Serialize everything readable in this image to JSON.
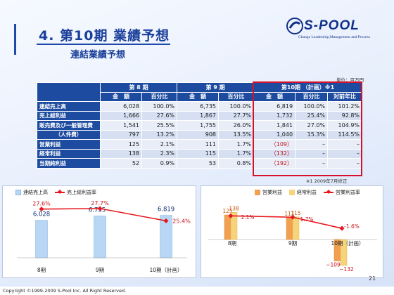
{
  "header": {
    "title": "4. 第10期 業績予想",
    "subtitle": "連結業績予想"
  },
  "logo": {
    "brand": "S-POOL",
    "tagline": "Change Leadership,Management and Process"
  },
  "unit_label": "単位：百万円",
  "table": {
    "periods": [
      "第 8 期",
      "第 9 期",
      "第10期 （計画）※1"
    ],
    "subheaders": [
      "金　額",
      "百分比",
      "金　額",
      "百分比",
      "金　額",
      "百分比",
      "対前年比"
    ],
    "rows": [
      {
        "label": "連結売上高",
        "center": false,
        "alt": false,
        "cells": [
          "6,028",
          "100.0%",
          "6,735",
          "100.0%",
          "6,819",
          "100.0%",
          "101.2%"
        ],
        "neg": [
          false,
          false,
          false,
          false,
          false,
          false,
          false
        ]
      },
      {
        "label": "売上総利益",
        "center": false,
        "alt": true,
        "cells": [
          "1,666",
          "27.6%",
          "1,867",
          "27.7%",
          "1,732",
          "25.4%",
          "92.8%"
        ],
        "neg": [
          false,
          false,
          false,
          false,
          false,
          false,
          false
        ]
      },
      {
        "label": "販売費及び一般管理費",
        "center": false,
        "alt": false,
        "cells": [
          "1,541",
          "25.5%",
          "1,755",
          "26.0%",
          "1,841",
          "27.0%",
          "104.9%"
        ],
        "neg": [
          false,
          false,
          false,
          false,
          false,
          false,
          false
        ]
      },
      {
        "label": "（人件費）",
        "center": true,
        "alt": true,
        "cells": [
          "797",
          "13.2%",
          "908",
          "13.5%",
          "1,040",
          "15.3%",
          "114.5%"
        ],
        "neg": [
          false,
          false,
          false,
          false,
          false,
          false,
          false
        ]
      },
      {
        "label": "営業利益",
        "center": false,
        "alt": false,
        "cells": [
          "125",
          "2.1%",
          "111",
          "1.7%",
          "（109）",
          "–",
          "–"
        ],
        "neg": [
          false,
          false,
          false,
          false,
          true,
          false,
          false
        ]
      },
      {
        "label": "経常利益",
        "center": false,
        "alt": true,
        "cells": [
          "138",
          "2.3%",
          "115",
          "1.7%",
          "（132）",
          "–",
          "–"
        ],
        "neg": [
          false,
          false,
          false,
          false,
          true,
          false,
          false
        ]
      },
      {
        "label": "当期純利益",
        "center": false,
        "alt": false,
        "cells": [
          "52",
          "0.9%",
          "53",
          "0.8%",
          "（192）",
          "–",
          "–"
        ],
        "neg": [
          false,
          false,
          false,
          false,
          true,
          false,
          false
        ]
      }
    ]
  },
  "note": "※1 2009年7月修正",
  "chart_data": [
    {
      "type": "bar",
      "categories": [
        "8期",
        "9期",
        "10期（計画）"
      ],
      "series": [
        {
          "name": "連結売上高",
          "kind": "bar",
          "values": [
            6028,
            6735,
            6819
          ],
          "labels": [
            "6.028",
            "6.735",
            "6.819"
          ],
          "color": "#b7d7f4"
        },
        {
          "name": "売上総利益率",
          "kind": "line",
          "values": [
            27.6,
            27.7,
            25.4
          ],
          "labels": [
            "27.6%",
            "27.7%",
            "25.4%"
          ],
          "color": "#e8171d"
        }
      ]
    },
    {
      "type": "bar",
      "categories": [
        "8期",
        "9期",
        "10期（計画）"
      ],
      "series": [
        {
          "name": "営業利益",
          "kind": "bar",
          "values": [
            125,
            111,
            -109
          ],
          "labels": [
            "125",
            "111",
            "−109"
          ],
          "color": "#f0a050"
        },
        {
          "name": "経常利益",
          "kind": "bar",
          "values": [
            138,
            115,
            -132
          ],
          "labels": [
            "138",
            "115",
            "−132"
          ],
          "color": "#f7d37a"
        },
        {
          "name": "営業利益率",
          "kind": "line",
          "values": [
            2.1,
            1.7,
            -1.6
          ],
          "labels": [
            "2.1%",
            "1.7%",
            "-1.6%"
          ],
          "color": "#e8171d"
        }
      ]
    }
  ],
  "page_number": "21",
  "copyright": "Copyright ©1999-2009 S-Pool Inc. All Right Reserved."
}
